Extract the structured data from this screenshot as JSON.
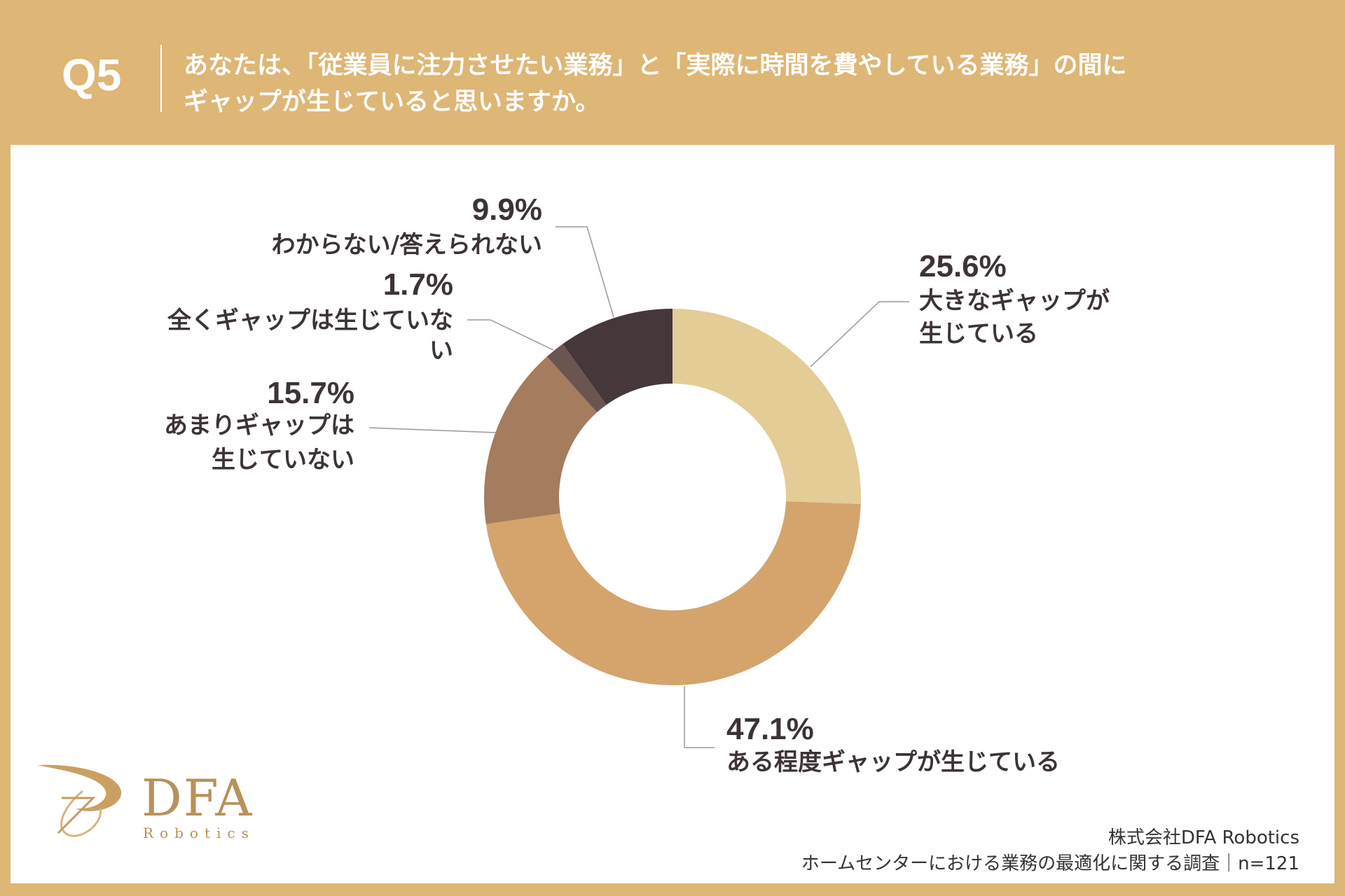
{
  "header": {
    "question_number": "Q5",
    "question_line1": "あなたは、「従業員に注力させたい業務」と「実際に時間を費やしている業務」の間に",
    "question_line2": "ギャップが生じていると思いますか。"
  },
  "chart_data": {
    "type": "donut",
    "start": "top",
    "direction": "clockwise",
    "slices": [
      {
        "label_lines": [
          "大きなギャップが",
          "生じている"
        ],
        "value": 25.6,
        "value_label": "25.6%",
        "color": "#e3cc96"
      },
      {
        "label_lines": [
          "ある程度ギャップが生じている"
        ],
        "value": 47.1,
        "value_label": "47.1%",
        "color": "#d4a46c"
      },
      {
        "label_lines": [
          "あまりギャップは",
          "生じていない"
        ],
        "value": 15.7,
        "value_label": "15.7%",
        "color": "#a57c5e"
      },
      {
        "label_lines": [
          "全くギャップは生じていな",
          "い"
        ],
        "value": 1.7,
        "value_label": "1.7%",
        "color": "#6b5551"
      },
      {
        "label_lines": [
          "わからない/答えられない"
        ],
        "value": 9.9,
        "value_label": "9.9%",
        "color": "#45373a"
      }
    ]
  },
  "logo": {
    "name": "DFA",
    "sub": "Robotics"
  },
  "footer": {
    "company": "株式会社DFA Robotics",
    "survey": "ホームセンターにおける業務の最適化に関する調査｜n=121"
  },
  "colors": {
    "background": "#deb676",
    "text": "#3d3336",
    "leader": "#999999"
  }
}
